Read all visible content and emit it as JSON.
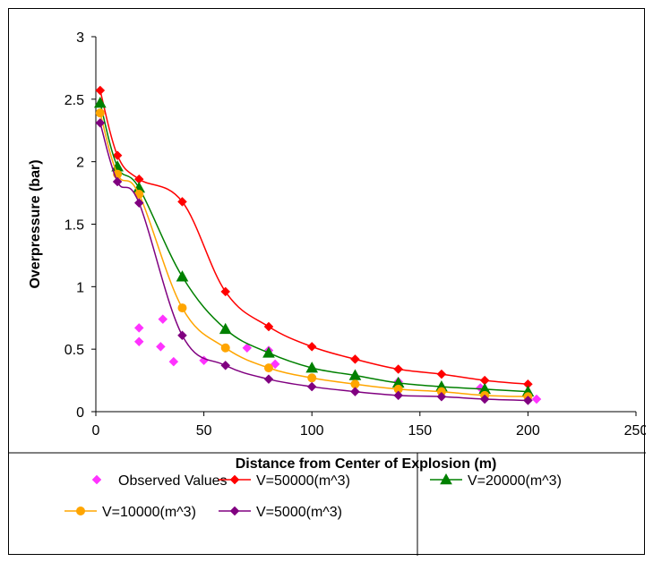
{
  "chart_data": {
    "type": "line",
    "xlabel": "Distance from Center of Explosion (m)",
    "ylabel": "Overpressure (bar)",
    "xlim": [
      0,
      250
    ],
    "ylim": [
      0,
      3
    ],
    "xticks": [
      0,
      50,
      100,
      150,
      200,
      250
    ],
    "yticks": [
      0,
      0.5,
      1,
      1.5,
      2,
      2.5,
      3
    ],
    "ytick_labels": [
      "0",
      "0.5",
      "1",
      "1.5",
      "2",
      "2.5",
      "3"
    ],
    "grid": false,
    "legend_position": "bottom",
    "series": [
      {
        "name": "Observed Values",
        "style": "scatter",
        "marker": "diamond",
        "color": "#ff33ff",
        "points": [
          [
            20,
            0.67
          ],
          [
            20,
            0.56
          ],
          [
            31,
            0.74
          ],
          [
            30,
            0.52
          ],
          [
            36,
            0.4
          ],
          [
            50,
            0.41
          ],
          [
            70,
            0.51
          ],
          [
            80,
            0.49
          ],
          [
            83,
            0.38
          ],
          [
            140,
            0.24
          ],
          [
            178,
            0.19
          ],
          [
            204,
            0.1
          ]
        ]
      },
      {
        "name": "V=50000(m^3)",
        "style": "line",
        "marker": "diamond",
        "color": "#ff0000",
        "points": [
          [
            2,
            2.57
          ],
          [
            10,
            2.05
          ],
          [
            20,
            1.86
          ],
          [
            40,
            1.68
          ],
          [
            60,
            0.96
          ],
          [
            80,
            0.68
          ],
          [
            100,
            0.52
          ],
          [
            120,
            0.42
          ],
          [
            140,
            0.34
          ],
          [
            160,
            0.3
          ],
          [
            180,
            0.25
          ],
          [
            200,
            0.22
          ]
        ]
      },
      {
        "name": "V=20000(m^3)",
        "style": "line",
        "marker": "triangle",
        "color": "#008000",
        "points": [
          [
            2,
            2.47
          ],
          [
            10,
            1.96
          ],
          [
            20,
            1.79
          ],
          [
            40,
            1.08
          ],
          [
            60,
            0.66
          ],
          [
            80,
            0.47
          ],
          [
            100,
            0.35
          ],
          [
            120,
            0.29
          ],
          [
            140,
            0.23
          ],
          [
            160,
            0.2
          ],
          [
            180,
            0.18
          ],
          [
            200,
            0.16
          ]
        ]
      },
      {
        "name": "V=10000(m^3)",
        "style": "line",
        "marker": "circle",
        "color": "#ffa500",
        "points": [
          [
            2,
            2.39
          ],
          [
            10,
            1.9
          ],
          [
            20,
            1.74
          ],
          [
            40,
            0.83
          ],
          [
            60,
            0.51
          ],
          [
            80,
            0.35
          ],
          [
            100,
            0.27
          ],
          [
            120,
            0.22
          ],
          [
            140,
            0.18
          ],
          [
            160,
            0.16
          ],
          [
            180,
            0.13
          ],
          [
            200,
            0.12
          ]
        ]
      },
      {
        "name": "V=5000(m^3)",
        "style": "line",
        "marker": "diamond",
        "color": "#800080",
        "points": [
          [
            2,
            2.31
          ],
          [
            10,
            1.84
          ],
          [
            20,
            1.67
          ],
          [
            40,
            0.61
          ],
          [
            60,
            0.37
          ],
          [
            80,
            0.26
          ],
          [
            100,
            0.2
          ],
          [
            120,
            0.16
          ],
          [
            140,
            0.13
          ],
          [
            160,
            0.12
          ],
          [
            180,
            0.1
          ],
          [
            200,
            0.09
          ]
        ]
      }
    ]
  }
}
